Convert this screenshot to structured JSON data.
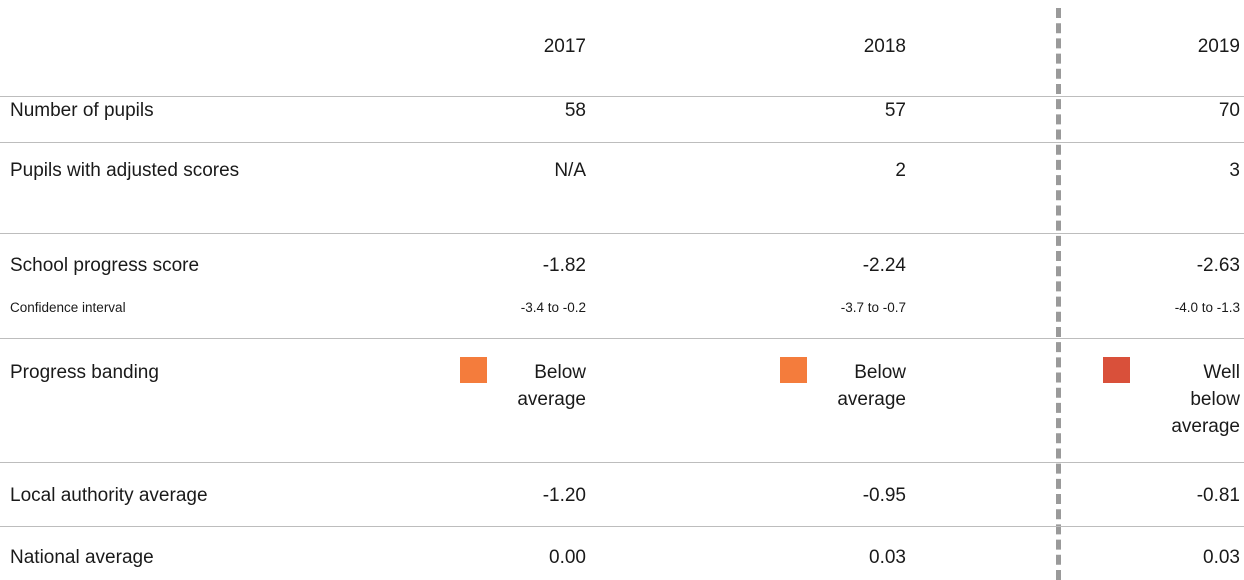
{
  "table": {
    "columns": [
      "2017",
      "2018",
      "2019"
    ],
    "rows": [
      {
        "label": "Number of pupils",
        "cells": [
          "58",
          "57",
          "70"
        ]
      },
      {
        "label": "Pupils with adjusted scores",
        "cells": [
          "N/A",
          "2",
          "3"
        ]
      },
      {
        "label": "School progress score",
        "cells": [
          "-1.82",
          "-2.24",
          "-2.63"
        ]
      },
      {
        "label": "Confidence interval",
        "cells": [
          "-3.4 to -0.2",
          "-3.7 to -0.7",
          "-4.0 to -1.3"
        ]
      },
      {
        "label": "Progress banding",
        "cells": [
          {
            "text": "Below average",
            "color": "#f47c3c"
          },
          {
            "text": "Below average",
            "color": "#f47c3c"
          },
          {
            "text": "Well below average",
            "color": "#d9503a"
          }
        ]
      },
      {
        "label": "Local authority average",
        "cells": [
          "-1.20",
          "-0.95",
          "-0.81"
        ]
      },
      {
        "label": "National average",
        "cells": [
          "0.00",
          "0.03",
          "0.03"
        ]
      }
    ]
  }
}
